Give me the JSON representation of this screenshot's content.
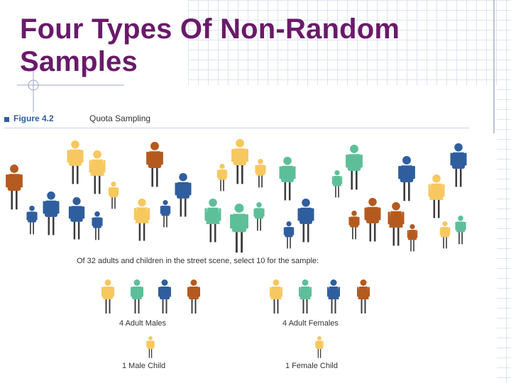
{
  "title_lines": [
    "Four Types Of Non-Random",
    "Samples"
  ],
  "figure": {
    "label": "Figure 4.2",
    "caption": "Quota Sampling"
  },
  "instruction": "Of 32 adults and children in the street scene, select 10 for the sample:",
  "groups": {
    "adult_males": "4 Adult Males",
    "adult_females": "4 Adult Females",
    "male_child": "1 Male Child",
    "female_child": "1 Female Child"
  },
  "colors": {
    "title": "#6a1a6a",
    "figure_accent": "#2f5e9e",
    "people": {
      "yellow": "#f6c85f",
      "brown": "#b55a1e",
      "blue": "#2f5e9e",
      "green": "#5dbf9a"
    }
  }
}
